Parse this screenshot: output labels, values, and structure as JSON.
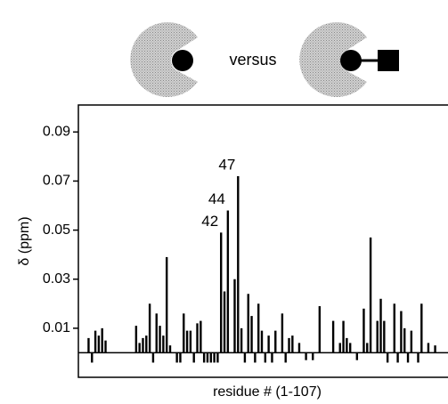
{
  "chart_data": {
    "type": "bar",
    "legend_text": "versus",
    "xlabel": "residue # (1-107)",
    "ylabel": "δ (ppm)",
    "x": [
      1,
      2,
      3,
      4,
      5,
      6,
      7,
      8,
      9,
      10,
      11,
      12,
      13,
      14,
      15,
      16,
      17,
      18,
      19,
      20,
      21,
      22,
      23,
      24,
      25,
      26,
      27,
      28,
      29,
      30,
      31,
      32,
      33,
      34,
      35,
      36,
      37,
      38,
      39,
      40,
      41,
      42,
      43,
      44,
      45,
      46,
      47,
      48,
      49,
      50,
      51,
      52,
      53,
      54,
      55,
      56,
      57,
      58,
      59,
      60,
      61,
      62,
      63,
      64,
      65,
      66,
      67,
      68,
      69,
      70,
      71,
      72,
      73,
      74,
      75,
      76,
      77,
      78,
      79,
      80,
      81,
      82,
      83,
      84,
      85,
      86,
      87,
      88,
      89,
      90,
      91,
      92,
      93,
      94,
      95,
      96,
      97,
      98,
      99,
      100,
      101,
      102,
      103,
      104,
      105,
      106,
      107
    ],
    "values": [
      0,
      0,
      0.006,
      -0.004,
      0.009,
      0.007,
      0.01,
      0.005,
      0,
      0,
      0,
      0,
      0,
      0,
      0,
      0,
      0.011,
      0.004,
      0.006,
      0.007,
      0.02,
      -0.004,
      0.016,
      0.011,
      0.007,
      0.039,
      0.003,
      0,
      -0.004,
      -0.004,
      0.016,
      0.009,
      0.009,
      -0.004,
      0.012,
      0.013,
      -0.004,
      -0.004,
      -0.004,
      -0.004,
      -0.004,
      0.049,
      0.025,
      0.058,
      0,
      0.03,
      0.072,
      0.01,
      -0.004,
      0.024,
      0.015,
      -0.004,
      0.02,
      0.009,
      -0.004,
      0.007,
      -0.004,
      0.009,
      0,
      0.016,
      -0.004,
      0.006,
      0.007,
      0,
      0.004,
      0,
      -0.003,
      0,
      -0.003,
      0,
      0.019,
      0,
      0,
      0,
      0.013,
      0,
      0.004,
      0.013,
      0.006,
      0.004,
      0,
      -0.003,
      0,
      0.018,
      0.004,
      0.047,
      0,
      0.013,
      0.022,
      0.013,
      -0.004,
      0,
      0.02,
      -0.004,
      0.017,
      0.01,
      -0.004,
      0.009,
      0,
      -0.004,
      0.02,
      0,
      0.004,
      0,
      0.003,
      0,
      0
    ],
    "color": "#000000",
    "annotations": [
      {
        "text": "42",
        "x": 42
      },
      {
        "text": "44",
        "x": 44
      },
      {
        "text": "47",
        "x": 47
      }
    ],
    "xlim": [
      0,
      108
    ],
    "ylim": [
      -0.01,
      0.101
    ],
    "yticks": [
      0.01,
      0.03,
      0.05,
      0.07,
      0.09
    ]
  }
}
